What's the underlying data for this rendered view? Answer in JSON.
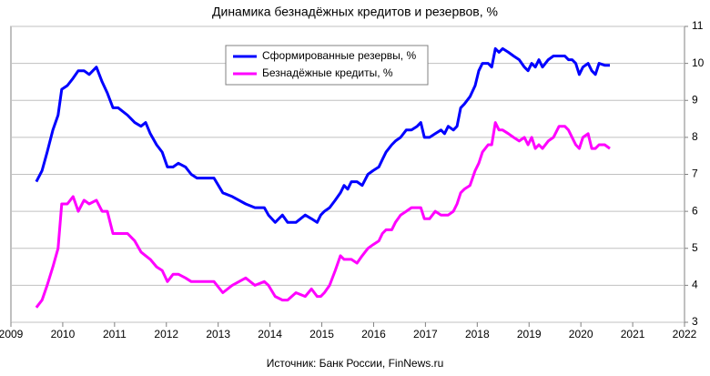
{
  "chart_data": {
    "type": "line",
    "title": "Динамика  безнадёжных кредитов и резервов, %",
    "source": "Источник: Банк России, FinNews.ru",
    "x": [
      2009.49,
      2009.6,
      2009.7,
      2009.81,
      2009.91,
      2009.98,
      2010.09,
      2010.2,
      2010.3,
      2010.41,
      2010.51,
      2010.65,
      2010.76,
      2010.86,
      2010.97,
      2011.07,
      2011.25,
      2011.39,
      2011.51,
      2011.6,
      2011.69,
      2011.81,
      2011.92,
      2012.02,
      2012.13,
      2012.23,
      2012.37,
      2012.48,
      2012.59,
      2012.8,
      2012.92,
      2013.09,
      2013.27,
      2013.53,
      2013.71,
      2013.89,
      2013.97,
      2014.1,
      2014.24,
      2014.34,
      2014.5,
      2014.68,
      2014.8,
      2014.91,
      2014.98,
      2015.05,
      2015.15,
      2015.26,
      2015.36,
      2015.43,
      2015.5,
      2015.57,
      2015.68,
      2015.78,
      2015.89,
      2015.99,
      2016.1,
      2016.17,
      2016.24,
      2016.35,
      2016.42,
      2016.52,
      2016.63,
      2016.73,
      2016.84,
      2016.91,
      2016.98,
      2017.08,
      2017.19,
      2017.3,
      2017.37,
      2017.44,
      2017.54,
      2017.61,
      2017.68,
      2017.75,
      2017.86,
      2017.96,
      2018.03,
      2018.1,
      2018.21,
      2018.28,
      2018.35,
      2018.42,
      2018.49,
      2018.6,
      2018.7,
      2018.81,
      2018.91,
      2018.98,
      2019.05,
      2019.12,
      2019.19,
      2019.26,
      2019.37,
      2019.47,
      2019.58,
      2019.69,
      2019.76,
      2019.83,
      2019.9,
      2019.97,
      2020.04,
      2020.14,
      2020.21,
      2020.28,
      2020.35,
      2020.46,
      2020.56
    ],
    "series": [
      {
        "name": "Сформированные  резервы, %",
        "color": "#0000ff",
        "values": [
          6.8,
          7.1,
          7.6,
          8.2,
          8.6,
          9.3,
          9.4,
          9.6,
          9.8,
          9.8,
          9.7,
          9.9,
          9.5,
          9.2,
          8.8,
          8.8,
          8.6,
          8.4,
          8.3,
          8.4,
          8.1,
          7.8,
          7.6,
          7.2,
          7.2,
          7.3,
          7.2,
          7.0,
          6.9,
          6.9,
          6.9,
          6.5,
          6.4,
          6.2,
          6.1,
          6.1,
          5.9,
          5.7,
          5.9,
          5.7,
          5.7,
          5.9,
          5.8,
          5.7,
          5.9,
          6.0,
          6.1,
          6.3,
          6.5,
          6.7,
          6.6,
          6.8,
          6.8,
          6.7,
          7.0,
          7.1,
          7.2,
          7.4,
          7.6,
          7.8,
          7.9,
          8.0,
          8.2,
          8.2,
          8.3,
          8.4,
          8.0,
          8.0,
          8.1,
          8.2,
          8.1,
          8.3,
          8.2,
          8.3,
          8.8,
          8.9,
          9.1,
          9.4,
          9.8,
          10.0,
          10.0,
          9.9,
          10.4,
          10.3,
          10.4,
          10.3,
          10.2,
          10.1,
          9.9,
          9.8,
          10.0,
          9.9,
          10.1,
          9.9,
          10.1,
          10.2,
          10.2,
          10.2,
          10.1,
          10.1,
          10.0,
          9.7,
          9.9,
          10.0,
          9.8,
          9.7,
          10.0,
          9.95,
          9.95
        ]
      },
      {
        "name": "Безнадёжные кредиты, %",
        "color": "#ff00ff",
        "values": [
          3.4,
          3.6,
          4.0,
          4.5,
          5.0,
          6.2,
          6.2,
          6.4,
          6.0,
          6.3,
          6.2,
          6.3,
          6.0,
          6.0,
          5.4,
          5.4,
          5.4,
          5.2,
          4.9,
          4.8,
          4.7,
          4.5,
          4.4,
          4.1,
          4.3,
          4.3,
          4.2,
          4.1,
          4.1,
          4.1,
          4.1,
          3.8,
          4.0,
          4.2,
          4.0,
          4.1,
          4.0,
          3.7,
          3.6,
          3.6,
          3.8,
          3.7,
          3.9,
          3.7,
          3.7,
          3.8,
          4.0,
          4.4,
          4.8,
          4.7,
          4.7,
          4.7,
          4.6,
          4.8,
          5.0,
          5.1,
          5.2,
          5.4,
          5.5,
          5.5,
          5.7,
          5.9,
          6.0,
          6.1,
          6.1,
          6.1,
          5.8,
          5.8,
          6.0,
          5.9,
          5.9,
          5.9,
          6.0,
          6.2,
          6.5,
          6.6,
          6.7,
          7.1,
          7.3,
          7.6,
          7.8,
          7.8,
          8.4,
          8.2,
          8.2,
          8.1,
          8.0,
          7.9,
          8.0,
          7.8,
          8.0,
          7.7,
          7.8,
          7.7,
          7.9,
          8.0,
          8.3,
          8.3,
          8.2,
          8.0,
          7.8,
          7.7,
          8.0,
          8.1,
          7.7,
          7.7,
          7.8,
          7.8,
          7.7
        ]
      }
    ],
    "xlim": [
      2009,
      2022
    ],
    "xticks": [
      2009,
      2010,
      2011,
      2012,
      2013,
      2014,
      2015,
      2016,
      2017,
      2018,
      2019,
      2020,
      2021,
      2022
    ],
    "ylim": [
      3,
      11
    ],
    "yticks": [
      3,
      4,
      5,
      6,
      7,
      8,
      9,
      10,
      11
    ],
    "grid": true,
    "legend": "top-left"
  }
}
